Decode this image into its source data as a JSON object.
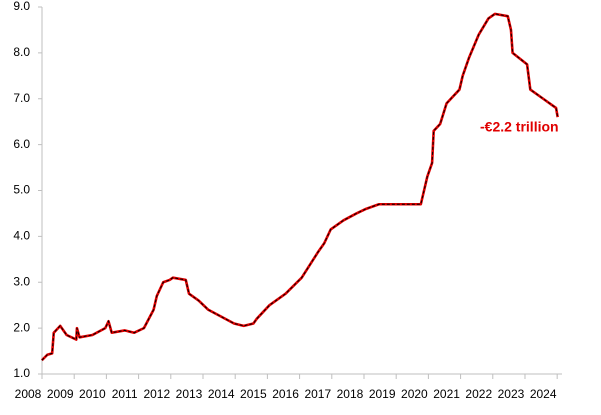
{
  "chart_data": {
    "type": "line",
    "annotation": "-€2.2 trillion",
    "x": [
      2008.43,
      2008.6,
      2008.75,
      2008.8,
      2009.0,
      2009.2,
      2009.5,
      2009.52,
      2009.6,
      2010.0,
      2010.4,
      2010.5,
      2010.6,
      2011.0,
      2011.3,
      2011.6,
      2011.9,
      2012.0,
      2012.2,
      2012.4,
      2012.5,
      2012.9,
      2013.0,
      2013.3,
      2013.6,
      2014.0,
      2014.4,
      2014.7,
      2015.0,
      2015.1,
      2015.5,
      2016.0,
      2016.5,
      2017.0,
      2017.2,
      2017.4,
      2017.8,
      2018.2,
      2018.5,
      2018.9,
      2019.5,
      2020.0,
      2020.2,
      2020.4,
      2020.55,
      2020.6,
      2020.8,
      2021.0,
      2021.4,
      2021.5,
      2021.7,
      2022.0,
      2022.3,
      2022.5,
      2022.9,
      2023.0,
      2023.05,
      2023.5,
      2023.6,
      2024.0,
      2024.3,
      2024.4,
      2024.45
    ],
    "series": [
      {
        "color": "#e00000",
        "values": [
          1.3,
          1.42,
          1.45,
          1.9,
          2.05,
          1.85,
          1.75,
          2.0,
          1.8,
          1.85,
          2.0,
          2.15,
          1.9,
          1.95,
          1.9,
          2.0,
          2.4,
          2.7,
          3.0,
          3.05,
          3.1,
          3.05,
          2.75,
          2.6,
          2.4,
          2.25,
          2.1,
          2.05,
          2.1,
          2.2,
          2.5,
          2.75,
          3.1,
          3.65,
          3.85,
          4.15,
          4.35,
          4.5,
          4.6,
          4.7,
          4.7,
          4.7,
          4.7,
          5.3,
          5.6,
          6.3,
          6.45,
          6.9,
          7.2,
          7.5,
          7.9,
          8.4,
          8.75,
          8.85,
          8.8,
          8.5,
          8.0,
          7.75,
          7.2,
          7.0,
          6.85,
          6.8,
          6.6
        ]
      }
    ],
    "xlim": [
      2008,
      2024.6
    ],
    "xticks": [
      2008,
      2009,
      2010,
      2011,
      2012,
      2013,
      2014,
      2015,
      2016,
      2017,
      2018,
      2019,
      2020,
      2021,
      2022,
      2023,
      2024
    ],
    "ylim": [
      1,
      9
    ],
    "yticks": [
      {
        "value": 1,
        "label": "1.0"
      },
      {
        "value": 2,
        "label": "2.0"
      },
      {
        "value": 3,
        "label": "3.0"
      },
      {
        "value": 4,
        "label": "4.0"
      },
      {
        "value": 5,
        "label": "5.0"
      },
      {
        "value": 6,
        "label": "6.0"
      },
      {
        "value": 7,
        "label": "7.0"
      },
      {
        "value": 8,
        "label": "8.0"
      },
      {
        "value": 9,
        "label": "9.0"
      }
    ]
  }
}
